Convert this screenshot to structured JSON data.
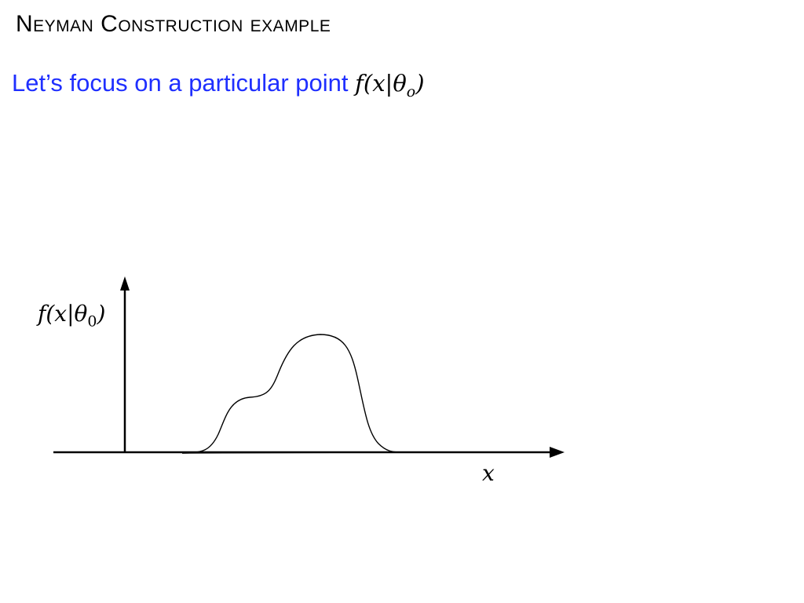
{
  "slide": {
    "title": "Neyman Construction example",
    "subtitle": {
      "text": "Let’s focus on a particular point ",
      "math_prefix": "f(x|θ",
      "math_sub": "o",
      "math_suffix": ")",
      "color": "#1f2fff"
    }
  },
  "diagram": {
    "y_axis_label": {
      "prefix": "f(x|θ",
      "sub": "0",
      "suffix": ")"
    },
    "x_axis_label": "x",
    "curve_color": "#000000",
    "axis_color": "#000000"
  }
}
